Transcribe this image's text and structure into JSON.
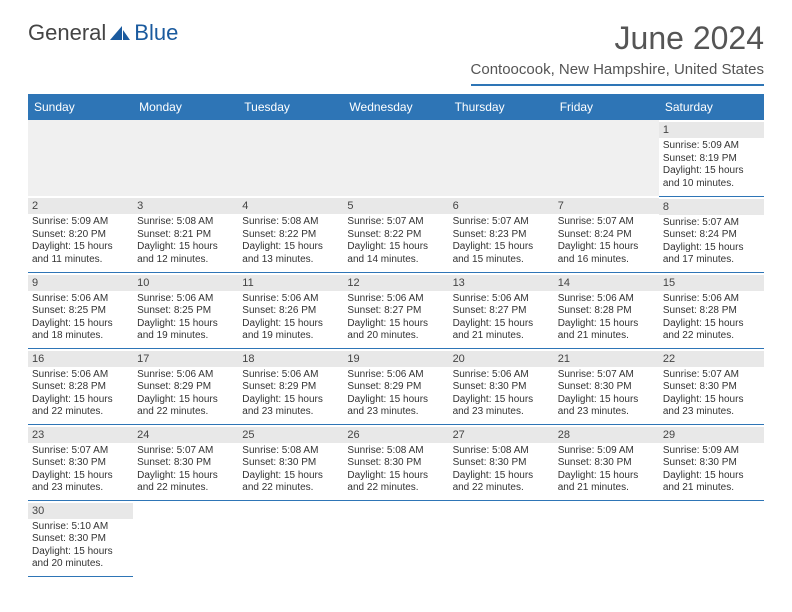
{
  "logo": {
    "text1": "General",
    "text2": "Blue"
  },
  "title": "June 2024",
  "location": "Contoocook, New Hampshire, United States",
  "colors": {
    "primary": "#2e75b6",
    "dayBg": "#e8e8e8",
    "text": "#333333"
  },
  "dayHeaders": [
    "Sunday",
    "Monday",
    "Tuesday",
    "Wednesday",
    "Thursday",
    "Friday",
    "Saturday"
  ],
  "weeks": [
    [
      null,
      null,
      null,
      null,
      null,
      null,
      {
        "n": "1",
        "sr": "5:09 AM",
        "ss": "8:19 PM",
        "dl": "15 hours and 10 minutes."
      }
    ],
    [
      {
        "n": "2",
        "sr": "5:09 AM",
        "ss": "8:20 PM",
        "dl": "15 hours and 11 minutes."
      },
      {
        "n": "3",
        "sr": "5:08 AM",
        "ss": "8:21 PM",
        "dl": "15 hours and 12 minutes."
      },
      {
        "n": "4",
        "sr": "5:08 AM",
        "ss": "8:22 PM",
        "dl": "15 hours and 13 minutes."
      },
      {
        "n": "5",
        "sr": "5:07 AM",
        "ss": "8:22 PM",
        "dl": "15 hours and 14 minutes."
      },
      {
        "n": "6",
        "sr": "5:07 AM",
        "ss": "8:23 PM",
        "dl": "15 hours and 15 minutes."
      },
      {
        "n": "7",
        "sr": "5:07 AM",
        "ss": "8:24 PM",
        "dl": "15 hours and 16 minutes."
      },
      {
        "n": "8",
        "sr": "5:07 AM",
        "ss": "8:24 PM",
        "dl": "15 hours and 17 minutes."
      }
    ],
    [
      {
        "n": "9",
        "sr": "5:06 AM",
        "ss": "8:25 PM",
        "dl": "15 hours and 18 minutes."
      },
      {
        "n": "10",
        "sr": "5:06 AM",
        "ss": "8:25 PM",
        "dl": "15 hours and 19 minutes."
      },
      {
        "n": "11",
        "sr": "5:06 AM",
        "ss": "8:26 PM",
        "dl": "15 hours and 19 minutes."
      },
      {
        "n": "12",
        "sr": "5:06 AM",
        "ss": "8:27 PM",
        "dl": "15 hours and 20 minutes."
      },
      {
        "n": "13",
        "sr": "5:06 AM",
        "ss": "8:27 PM",
        "dl": "15 hours and 21 minutes."
      },
      {
        "n": "14",
        "sr": "5:06 AM",
        "ss": "8:28 PM",
        "dl": "15 hours and 21 minutes."
      },
      {
        "n": "15",
        "sr": "5:06 AM",
        "ss": "8:28 PM",
        "dl": "15 hours and 22 minutes."
      }
    ],
    [
      {
        "n": "16",
        "sr": "5:06 AM",
        "ss": "8:28 PM",
        "dl": "15 hours and 22 minutes."
      },
      {
        "n": "17",
        "sr": "5:06 AM",
        "ss": "8:29 PM",
        "dl": "15 hours and 22 minutes."
      },
      {
        "n": "18",
        "sr": "5:06 AM",
        "ss": "8:29 PM",
        "dl": "15 hours and 23 minutes."
      },
      {
        "n": "19",
        "sr": "5:06 AM",
        "ss": "8:29 PM",
        "dl": "15 hours and 23 minutes."
      },
      {
        "n": "20",
        "sr": "5:06 AM",
        "ss": "8:30 PM",
        "dl": "15 hours and 23 minutes."
      },
      {
        "n": "21",
        "sr": "5:07 AM",
        "ss": "8:30 PM",
        "dl": "15 hours and 23 minutes."
      },
      {
        "n": "22",
        "sr": "5:07 AM",
        "ss": "8:30 PM",
        "dl": "15 hours and 23 minutes."
      }
    ],
    [
      {
        "n": "23",
        "sr": "5:07 AM",
        "ss": "8:30 PM",
        "dl": "15 hours and 23 minutes."
      },
      {
        "n": "24",
        "sr": "5:07 AM",
        "ss": "8:30 PM",
        "dl": "15 hours and 22 minutes."
      },
      {
        "n": "25",
        "sr": "5:08 AM",
        "ss": "8:30 PM",
        "dl": "15 hours and 22 minutes."
      },
      {
        "n": "26",
        "sr": "5:08 AM",
        "ss": "8:30 PM",
        "dl": "15 hours and 22 minutes."
      },
      {
        "n": "27",
        "sr": "5:08 AM",
        "ss": "8:30 PM",
        "dl": "15 hours and 22 minutes."
      },
      {
        "n": "28",
        "sr": "5:09 AM",
        "ss": "8:30 PM",
        "dl": "15 hours and 21 minutes."
      },
      {
        "n": "29",
        "sr": "5:09 AM",
        "ss": "8:30 PM",
        "dl": "15 hours and 21 minutes."
      }
    ],
    [
      {
        "n": "30",
        "sr": "5:10 AM",
        "ss": "8:30 PM",
        "dl": "15 hours and 20 minutes."
      },
      null,
      null,
      null,
      null,
      null,
      null
    ]
  ],
  "labels": {
    "sunrise": "Sunrise:",
    "sunset": "Sunset:",
    "daylight": "Daylight:"
  }
}
